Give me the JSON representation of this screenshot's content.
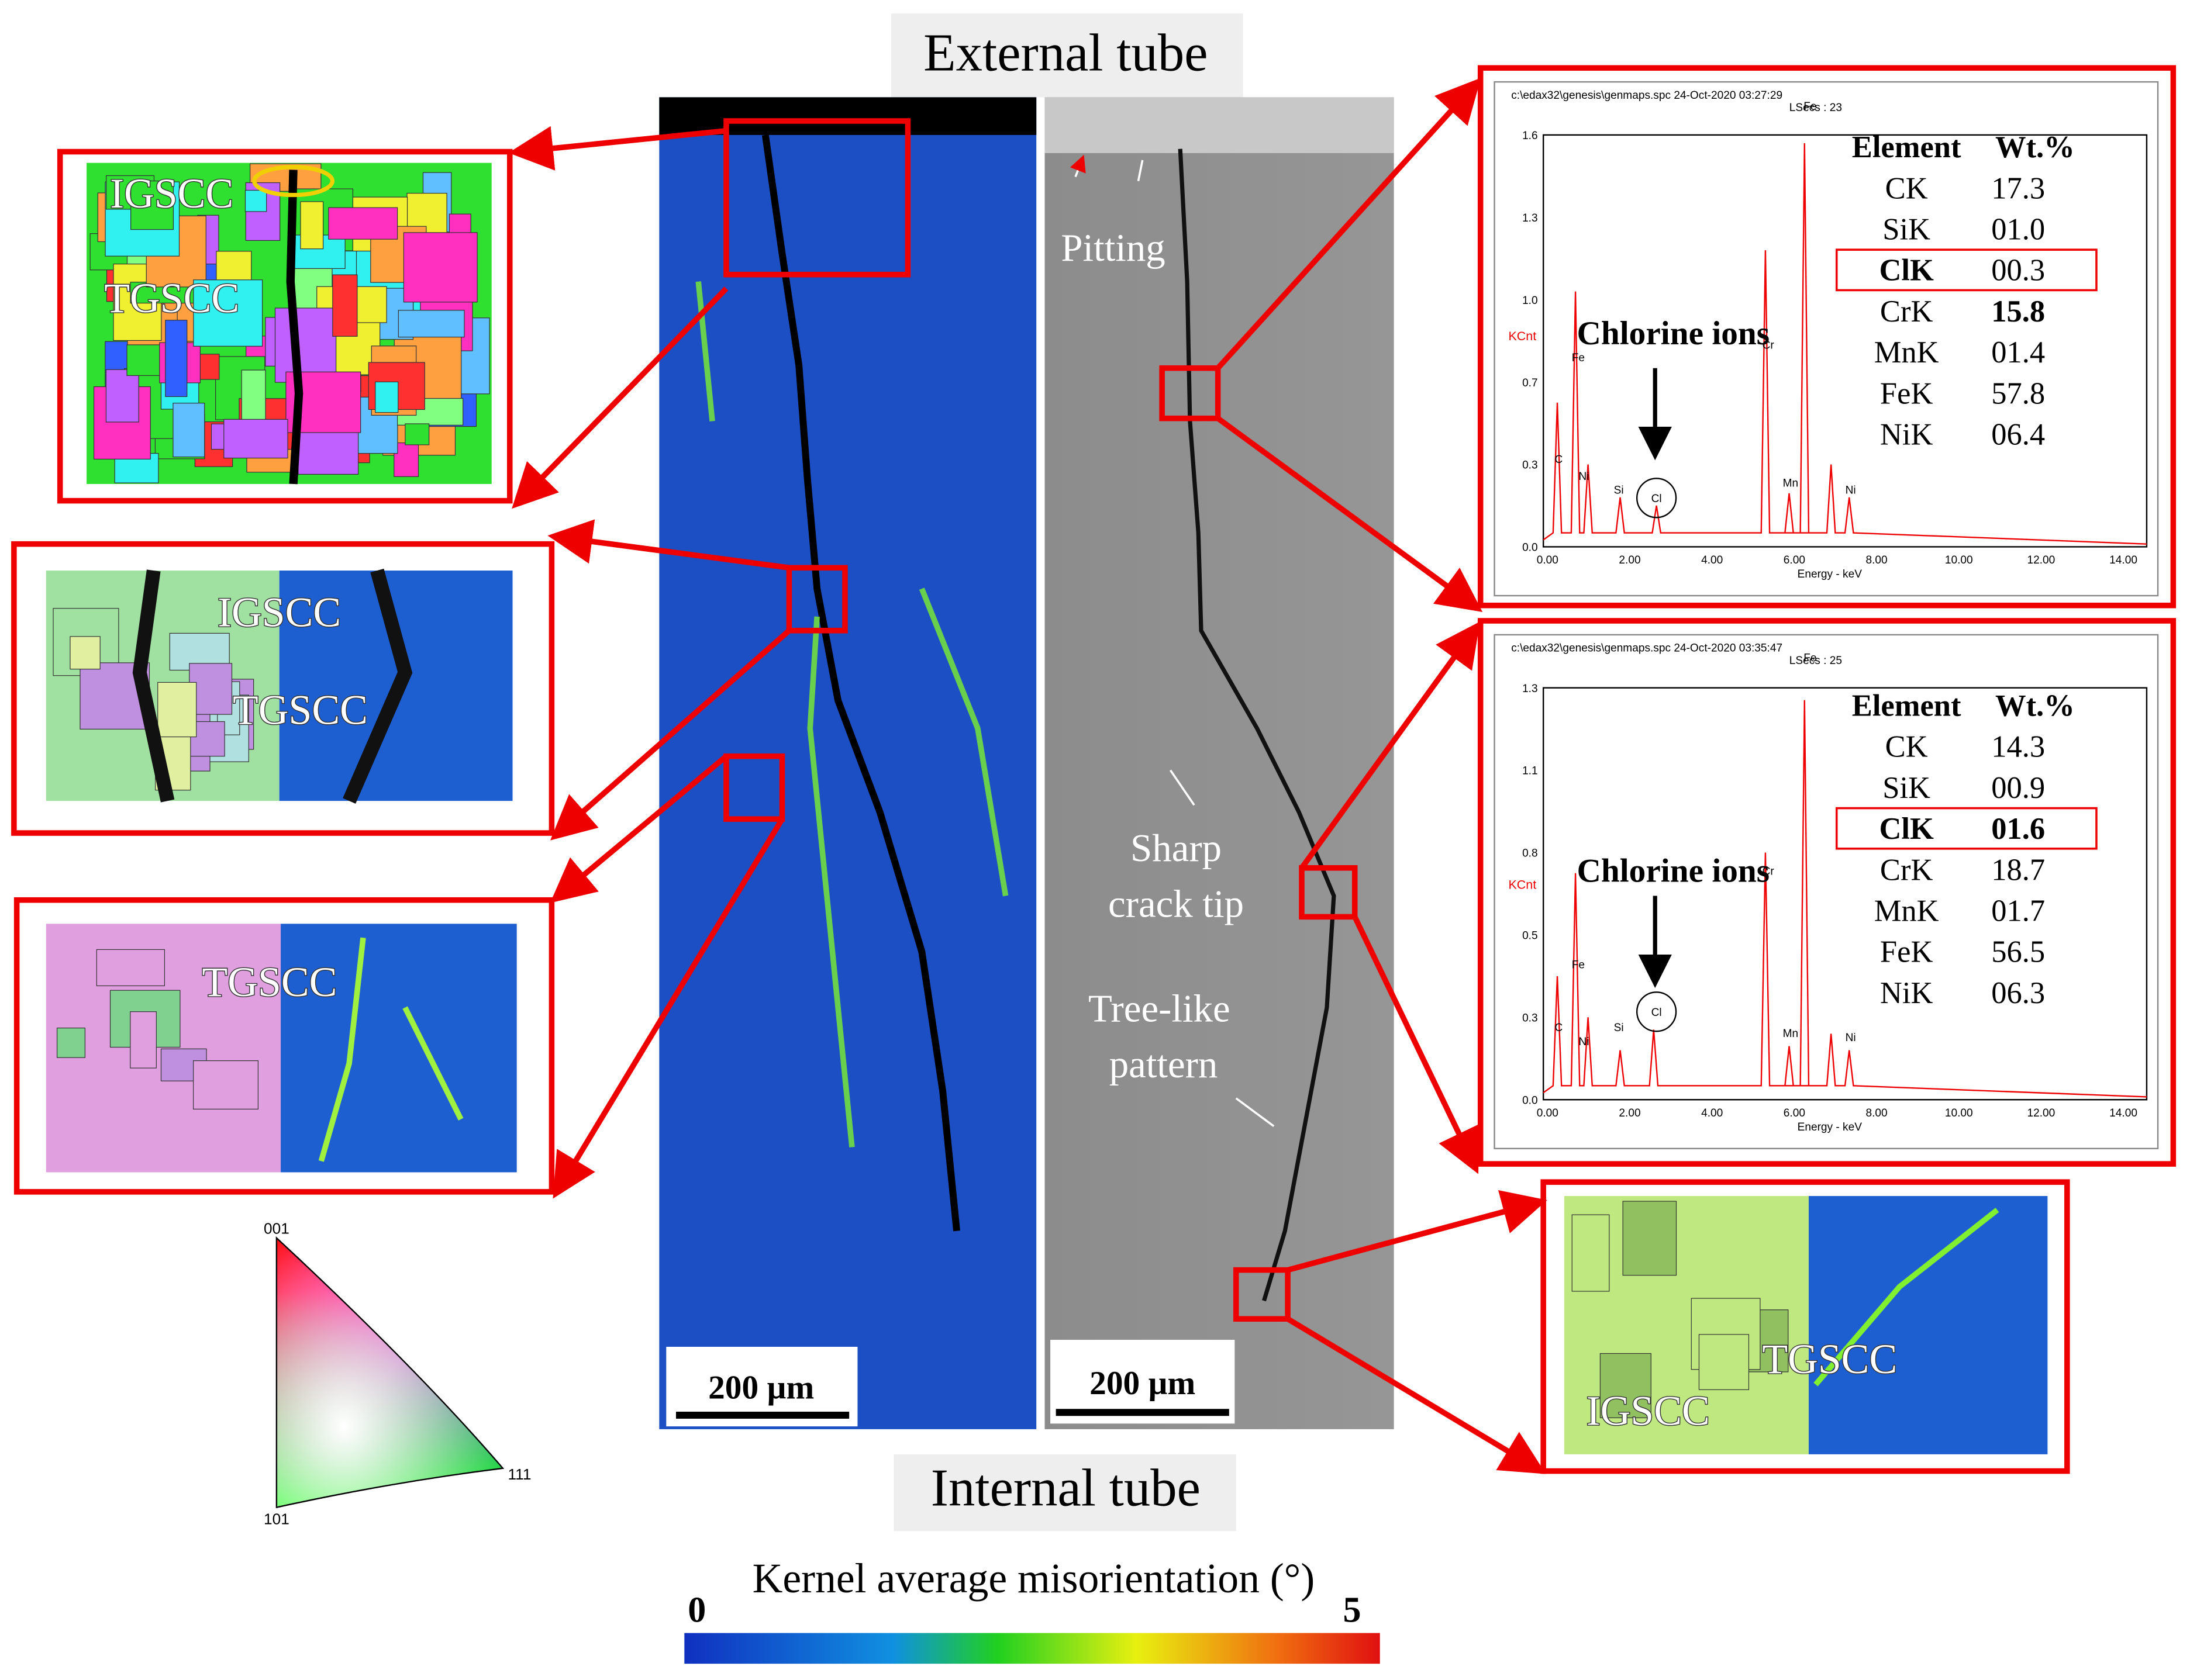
{
  "header": {
    "top_label": "External tube",
    "bottom_label": "Internal tube"
  },
  "colorbar": {
    "title": "Kernel average misorientation  (°)",
    "min": "0",
    "max": "5"
  },
  "ipf_legend": {
    "top": "001",
    "left": "101",
    "right": "111"
  },
  "scale_bars": [
    "200 µm",
    "200 µm"
  ],
  "sem_annotations": {
    "pitting": "Pitting",
    "crack_tip": [
      "Sharp",
      "crack tip"
    ],
    "tree": [
      "Tree-like",
      "pattern"
    ]
  },
  "insets": [
    {
      "labels": [
        "IGSCC",
        "TGSCC"
      ]
    },
    {
      "labels": [
        "IGSCC",
        "TGSCC"
      ]
    },
    {
      "labels": [
        "TGSCC"
      ]
    },
    {
      "labels": [
        "TGSCC",
        "IGSCC"
      ]
    }
  ],
  "spectra": [
    {
      "file": "c:\\edax32\\genesis\\genmaps.spc  24-Oct-2020 03:27:29",
      "lsecs": "LSecs : 23",
      "y_label": "KCnt",
      "x_label": "Energy - keV",
      "yticks": [
        "0.0",
        "0.3",
        "0.7",
        "1.0",
        "1.3",
        "1.6"
      ],
      "xticks": [
        "0.00",
        "2.00",
        "4.00",
        "6.00",
        "8.00",
        "10.00",
        "12.00",
        "14.00"
      ],
      "peaks": [
        "C",
        "Fe",
        "Ni",
        "Si",
        "Cl",
        "Cr",
        "Fe",
        "Mn",
        "Ni"
      ],
      "annotation": "Chlorine ions",
      "table": {
        "columns": [
          "Element",
          "Wt.%"
        ],
        "rows": [
          [
            "CK",
            "17.3"
          ],
          [
            "SiK",
            "01.0"
          ],
          [
            "ClK",
            "00.3"
          ],
          [
            "CrK",
            "15.8"
          ],
          [
            "MnK",
            "01.4"
          ],
          [
            "FeK",
            "57.8"
          ],
          [
            "NiK",
            "06.4"
          ]
        ]
      }
    },
    {
      "file": "c:\\edax32\\genesis\\genmaps.spc  24-Oct-2020 03:35:47",
      "lsecs": "LSecs : 25",
      "y_label": "KCnt",
      "x_label": "Energy - keV",
      "yticks": [
        "0.0",
        "0.3",
        "0.5",
        "0.8",
        "1.1",
        "1.3"
      ],
      "xticks": [
        "0.00",
        "2.00",
        "4.00",
        "6.00",
        "8.00",
        "10.00",
        "12.00",
        "14.00"
      ],
      "peaks": [
        "C",
        "Fe",
        "Ni",
        "Si",
        "Cl",
        "Cr",
        "Fe",
        "Mn",
        "Ni"
      ],
      "annotation": "Chlorine ions",
      "table": {
        "columns": [
          "Element",
          "Wt.%"
        ],
        "rows": [
          [
            "CK",
            "14.3"
          ],
          [
            "SiK",
            "00.9"
          ],
          [
            "ClK",
            "01.6"
          ],
          [
            "CrK",
            "18.7"
          ],
          [
            "MnK",
            "01.7"
          ],
          [
            "FeK",
            "56.5"
          ],
          [
            "NiK",
            "06.3"
          ]
        ]
      }
    }
  ]
}
